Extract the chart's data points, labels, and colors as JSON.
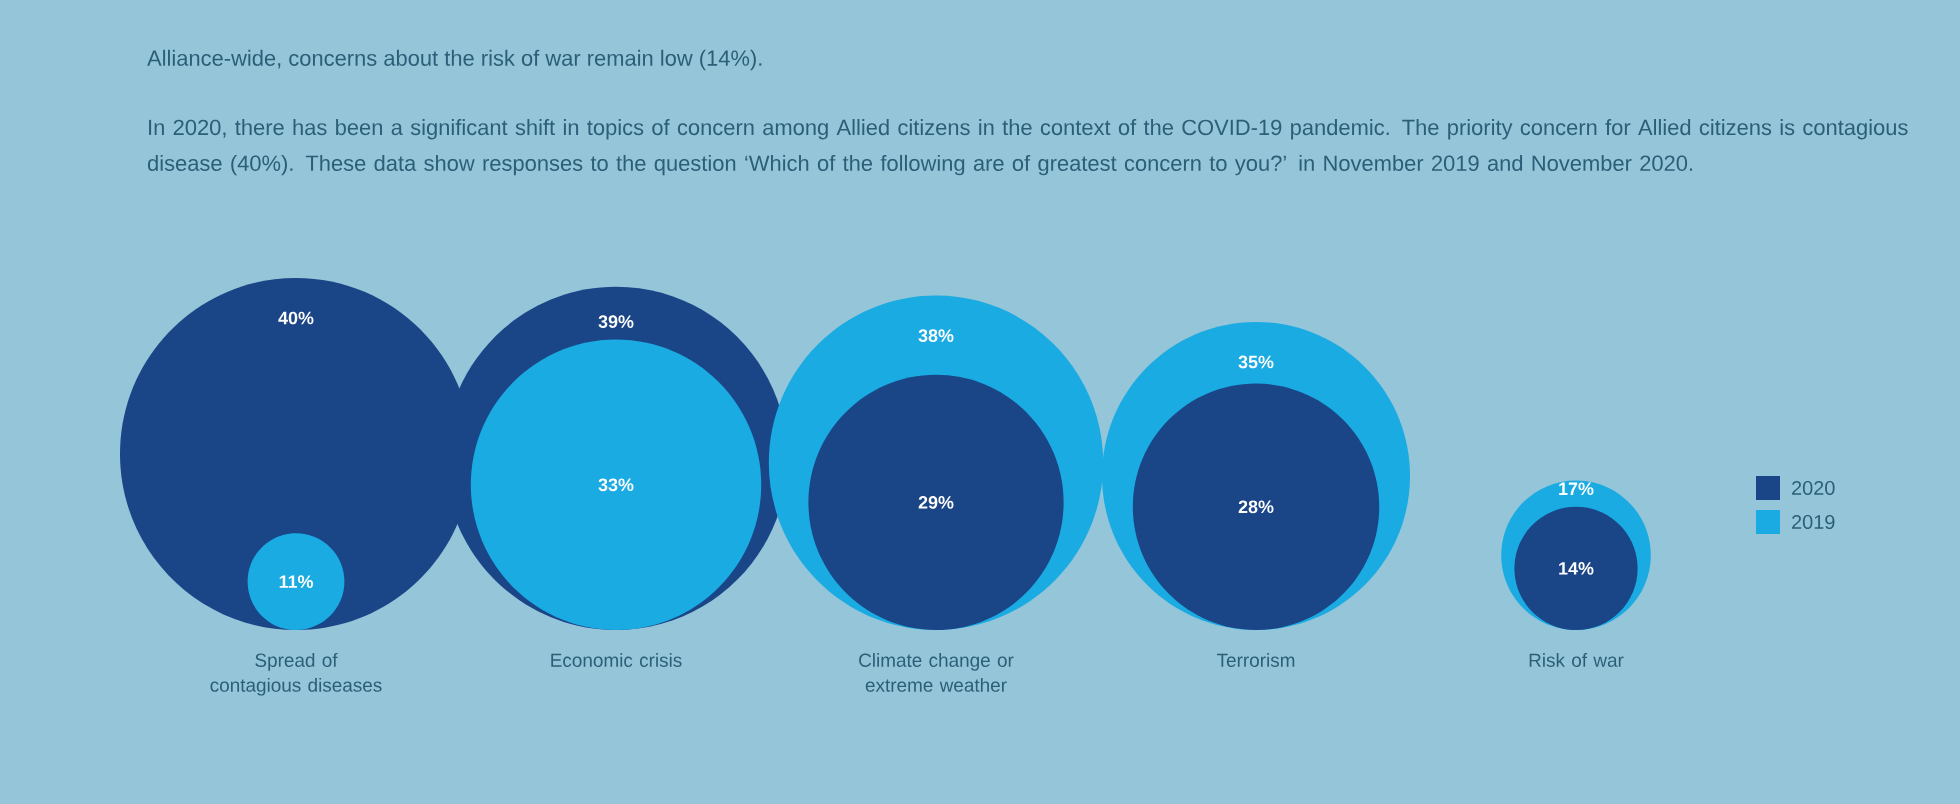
{
  "chart_data": {
    "type": "other",
    "title": "Alliance-wide, concerns about the risk of war remain low (14%).",
    "subtitle": "In 2020, there has been a significant shift in topics of concern among Allied citizens in the context of the COVID-19 pandemic. The priority concern for Allied citizens is contagious disease (40%). These data show responses to the question ‘Which of the following are of greatest concern to you?’ in November 2019 and November 2020.",
    "categories": [
      "Spread of contagious diseases",
      "Economic crisis",
      "Climate change or extreme weather",
      "Terrorism",
      "Risk of war"
    ],
    "series": [
      {
        "name": "2020",
        "color": "#1a4587",
        "values": [
          40,
          39,
          29,
          28,
          14
        ],
        "value_labels": [
          "40%",
          "39%",
          "29%",
          "28%",
          "14%"
        ]
      },
      {
        "name": "2019",
        "color": "#1aabe2",
        "values": [
          11,
          33,
          38,
          35,
          17
        ],
        "value_labels": [
          "11%",
          "33%",
          "38%",
          "35%",
          "17%"
        ]
      }
    ],
    "legend": "right"
  }
}
